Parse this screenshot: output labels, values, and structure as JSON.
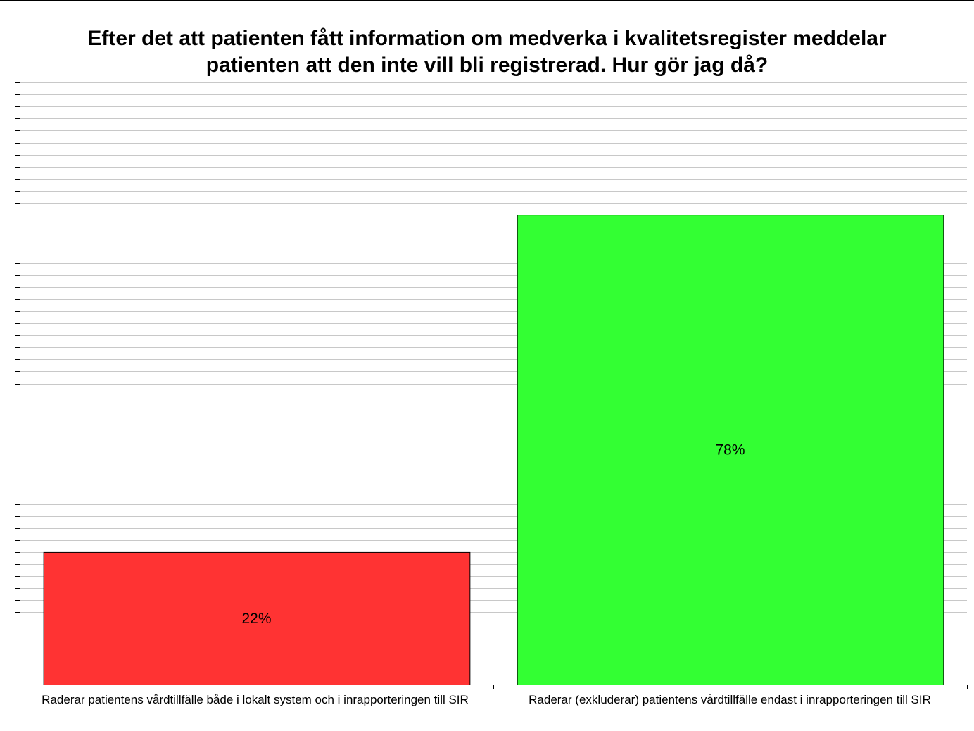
{
  "chart_data": {
    "type": "bar",
    "title_lines": [
      "Efter det att patienten fått information om medverka i kvalitetsregister meddelar",
      "patienten att den inte vill bli  registrerad. Hur gör jag då?"
    ],
    "categories": [
      "Raderar patientens vårdtillfälle både i lokalt system och i inrapporteringen till SIR",
      "Raderar (exkluderar) patientens vårdtillfälle endast i inrapporteringen till SIR"
    ],
    "values": [
      22,
      78
    ],
    "value_labels": [
      "22%",
      "78%"
    ],
    "colors": [
      "#ff3333",
      "#33ff33"
    ],
    "ylim": [
      0,
      100
    ],
    "grid": true,
    "legend": "none"
  }
}
